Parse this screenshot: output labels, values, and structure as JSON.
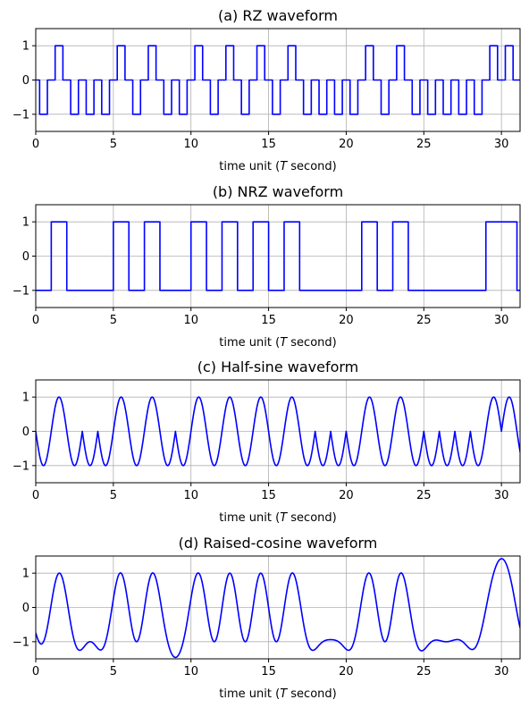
{
  "figure": {
    "background": "#ffffff"
  },
  "chart_data": [
    {
      "type": "line",
      "title": "(a) RZ waveform",
      "xlabel": "time unit (T second)",
      "xlabel_parts": [
        "time unit (",
        "T",
        " second)"
      ],
      "ylabel": "",
      "xlim": [
        0,
        31.2
      ],
      "ylim": [
        -1.5,
        1.5
      ],
      "xticks": [
        0,
        5,
        10,
        15,
        20,
        25,
        30
      ],
      "yticks": [
        1,
        0,
        -1
      ],
      "ytick_labels": [
        "1",
        "0",
        "−1"
      ],
      "grid": true,
      "color": "#0000ff",
      "kind": "rz",
      "bits": [
        0,
        1,
        0,
        0,
        0,
        1,
        0,
        1,
        0,
        0,
        1,
        0,
        1,
        0,
        1,
        0,
        1,
        0,
        0,
        0,
        0,
        1,
        0,
        1,
        0,
        0,
        0,
        0,
        0,
        1,
        1,
        0
      ]
    },
    {
      "type": "line",
      "title": "(b) NRZ waveform",
      "xlabel": "time unit (T second)",
      "xlabel_parts": [
        "time unit (",
        "T",
        " second)"
      ],
      "ylabel": "",
      "xlim": [
        0,
        31.2
      ],
      "ylim": [
        -1.5,
        1.5
      ],
      "xticks": [
        0,
        5,
        10,
        15,
        20,
        25,
        30
      ],
      "yticks": [
        1,
        0,
        -1
      ],
      "ytick_labels": [
        "1",
        "0",
        "−1"
      ],
      "grid": true,
      "color": "#0000ff",
      "kind": "nrz",
      "bits": [
        0,
        1,
        0,
        0,
        0,
        1,
        0,
        1,
        0,
        0,
        1,
        0,
        1,
        0,
        1,
        0,
        1,
        0,
        0,
        0,
        0,
        1,
        0,
        1,
        0,
        0,
        0,
        0,
        0,
        1,
        1,
        0
      ]
    },
    {
      "type": "line",
      "title": "(c) Half-sine waveform",
      "xlabel": "time unit (T second)",
      "xlabel_parts": [
        "time unit (",
        "T",
        " second)"
      ],
      "ylabel": "",
      "xlim": [
        0,
        31.2
      ],
      "ylim": [
        -1.5,
        1.5
      ],
      "xticks": [
        0,
        5,
        10,
        15,
        20,
        25,
        30
      ],
      "yticks": [
        1,
        0,
        -1
      ],
      "ytick_labels": [
        "1",
        "0",
        "−1"
      ],
      "grid": true,
      "color": "#0000ff",
      "kind": "halfsine",
      "bits": [
        0,
        1,
        0,
        0,
        0,
        1,
        0,
        1,
        0,
        0,
        1,
        0,
        1,
        0,
        1,
        0,
        1,
        0,
        0,
        0,
        0,
        1,
        0,
        1,
        0,
        0,
        0,
        0,
        0,
        1,
        1,
        0
      ]
    },
    {
      "type": "line",
      "title": "(d) Raised-cosine waveform",
      "xlabel": "time unit (T second)",
      "xlabel_parts": [
        "time unit (",
        "T",
        " second)"
      ],
      "ylabel": "",
      "xlim": [
        0,
        31.2
      ],
      "ylim": [
        -1.5,
        1.5
      ],
      "xticks": [
        0,
        5,
        10,
        15,
        20,
        25,
        30
      ],
      "yticks": [
        1,
        0,
        -1
      ],
      "ytick_labels": [
        "1",
        "0",
        "−1"
      ],
      "grid": true,
      "color": "#0000ff",
      "kind": "raisedcos",
      "bits": [
        0,
        1,
        0,
        0,
        0,
        1,
        0,
        1,
        0,
        0,
        1,
        0,
        1,
        0,
        1,
        0,
        1,
        0,
        0,
        0,
        0,
        1,
        0,
        1,
        0,
        0,
        0,
        0,
        0,
        1,
        1,
        0
      ]
    }
  ]
}
